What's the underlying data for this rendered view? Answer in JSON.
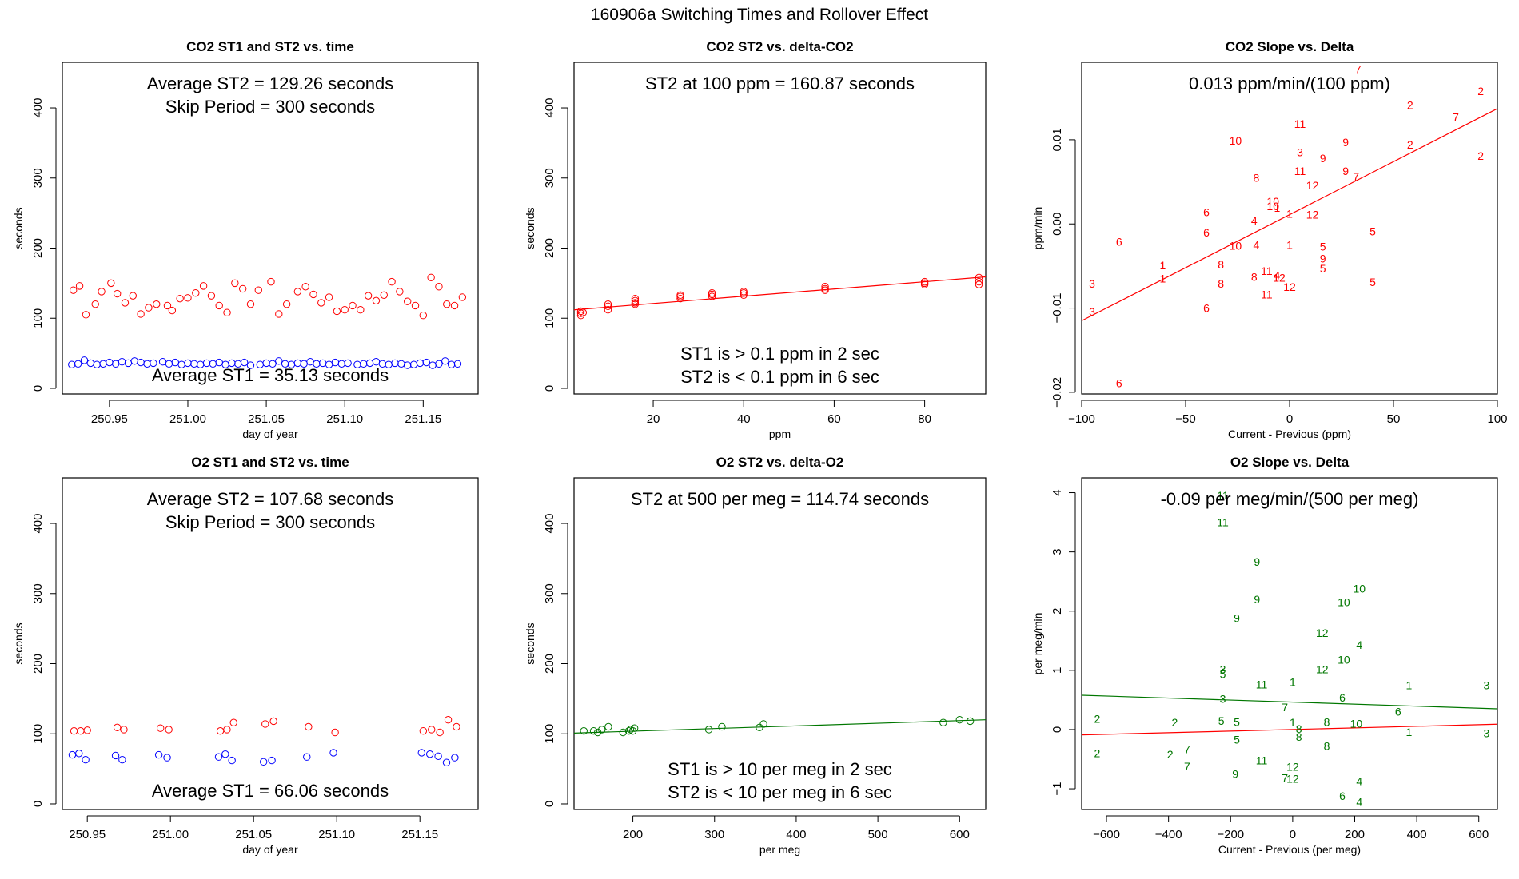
{
  "figure_title": "160906a   Switching Times and Rollover Effect",
  "colors": {
    "co2": "#ff0000",
    "st1": "#0000ff",
    "o2": "#007700",
    "frame": "#000000"
  },
  "chart_data": [
    {
      "type": "scatter",
      "title": "CO2 ST1 and ST2 vs. time",
      "xlabel": "day of year",
      "ylabel": "seconds",
      "xlim": [
        250.92,
        251.185
      ],
      "ylim": [
        -8,
        465
      ],
      "xticks": [
        250.95,
        251.0,
        251.05,
        251.1,
        251.15
      ],
      "xtick_labels": [
        "250.95",
        "251.00",
        "251.05",
        "251.10",
        "251.15"
      ],
      "yticks": [
        0,
        100,
        200,
        300,
        400
      ],
      "ytick_labels": [
        "0",
        "100",
        "200",
        "300",
        "400"
      ],
      "annotations": [
        "Average ST2 =  129.26  seconds",
        "Skip Period =  300  seconds",
        "Average ST1 =  35.13  seconds"
      ],
      "series": [
        {
          "name": "ST2",
          "color": "#ff0000",
          "x": [
            250.927,
            250.931,
            250.935,
            250.941,
            250.945,
            250.951,
            250.955,
            250.96,
            250.965,
            250.97,
            250.975,
            250.98,
            250.987,
            250.99,
            250.995,
            251.0,
            251.005,
            251.01,
            251.015,
            251.02,
            251.025,
            251.03,
            251.035,
            251.04,
            251.045,
            251.053,
            251.058,
            251.063,
            251.07,
            251.075,
            251.08,
            251.085,
            251.09,
            251.095,
            251.1,
            251.105,
            251.11,
            251.115,
            251.12,
            251.125,
            251.13,
            251.135,
            251.14,
            251.145,
            251.15,
            251.155,
            251.16,
            251.165,
            251.17,
            251.175
          ],
          "y": [
            140,
            146,
            105,
            120,
            138,
            150,
            135,
            122,
            132,
            106,
            115,
            120,
            118,
            111,
            128,
            129,
            136,
            146,
            132,
            118,
            108,
            150,
            142,
            120,
            140,
            152,
            106,
            120,
            138,
            145,
            134,
            122,
            130,
            110,
            112,
            118,
            112,
            132,
            125,
            133,
            152,
            138,
            124,
            118,
            104,
            158,
            145,
            120,
            118,
            130
          ]
        },
        {
          "name": "ST1",
          "color": "#0000ff",
          "x": [
            250.926,
            250.93,
            250.934,
            250.938,
            250.942,
            250.946,
            250.95,
            250.954,
            250.958,
            250.962,
            250.966,
            250.97,
            250.974,
            250.978,
            250.984,
            250.988,
            250.992,
            250.996,
            251.0,
            251.004,
            251.008,
            251.012,
            251.016,
            251.02,
            251.024,
            251.028,
            251.032,
            251.036,
            251.04,
            251.046,
            251.05,
            251.054,
            251.058,
            251.062,
            251.066,
            251.07,
            251.074,
            251.078,
            251.082,
            251.086,
            251.09,
            251.094,
            251.098,
            251.102,
            251.108,
            251.112,
            251.116,
            251.12,
            251.124,
            251.128,
            251.132,
            251.136,
            251.14,
            251.144,
            251.148,
            251.152,
            251.156,
            251.16,
            251.164,
            251.168,
            251.172
          ],
          "y": [
            34,
            35,
            40,
            36,
            34,
            35,
            37,
            35,
            38,
            36,
            39,
            37,
            35,
            36,
            38,
            35,
            37,
            34,
            36,
            35,
            34,
            36,
            35,
            37,
            34,
            36,
            35,
            37,
            33,
            34,
            36,
            35,
            39,
            35,
            34,
            36,
            35,
            38,
            35,
            36,
            34,
            37,
            35,
            36,
            34,
            35,
            36,
            38,
            35,
            34,
            36,
            35,
            33,
            34,
            36,
            37,
            33,
            35,
            39,
            34,
            35
          ]
        }
      ]
    },
    {
      "type": "scatter",
      "title": "CO2 ST2 vs. delta-CO2",
      "xlabel": "ppm",
      "ylabel": "seconds",
      "xlim": [
        2.5,
        93.5
      ],
      "ylim": [
        -8,
        465
      ],
      "xticks": [
        20,
        40,
        60,
        80
      ],
      "xtick_labels": [
        "20",
        "40",
        "60",
        "80"
      ],
      "yticks": [
        0,
        100,
        200,
        300,
        400
      ],
      "ytick_labels": [
        "0",
        "100",
        "200",
        "300",
        "400"
      ],
      "annotations": [
        "ST2 at 100 ppm =  160.87  seconds",
        "ST1 is > 0.1 ppm in 2 sec",
        "ST2 is < 0.1 ppm in 6 sec"
      ],
      "fit_line": {
        "color": "#ff0000",
        "x": [
          2.5,
          93.5
        ],
        "y": [
          112,
          159
        ]
      },
      "series": [
        {
          "name": "ST2",
          "color": "#ff0000",
          "x": [
            4,
            4,
            4,
            4.5,
            10,
            10,
            10,
            16,
            16,
            16,
            16,
            26,
            26,
            26,
            33,
            33,
            33,
            40,
            40,
            40,
            58,
            58,
            58,
            80,
            80,
            80,
            92,
            92,
            92
          ],
          "y": [
            104,
            107,
            110,
            108,
            112,
            117,
            120,
            120,
            122,
            125,
            128,
            128,
            131,
            133,
            131,
            134,
            136,
            133,
            136,
            138,
            140,
            142,
            145,
            148,
            150,
            152,
            148,
            152,
            158
          ]
        }
      ]
    },
    {
      "type": "scatter",
      "title": "CO2 Slope vs. Delta",
      "xlabel": "Current - Previous (ppm)",
      "ylabel": "ppm/min",
      "xlim": [
        -100,
        100
      ],
      "ylim": [
        -0.0202,
        0.0192
      ],
      "xticks": [
        -100,
        -50,
        0,
        50,
        100
      ],
      "xtick_labels": [
        "−100",
        "−50",
        "0",
        "50",
        "100"
      ],
      "yticks": [
        -0.02,
        -0.01,
        0.0,
        0.01
      ],
      "ytick_labels": [
        "−0.02",
        "−0.01",
        "0.00",
        "0.01"
      ],
      "annotations": [
        "0.013  ppm/min/(100 ppm)"
      ],
      "fit_line": {
        "color": "#ff0000",
        "x": [
          -100,
          100
        ],
        "y": [
          -0.0115,
          0.0137
        ]
      },
      "series": [
        {
          "name": "hour labels",
          "color": "#ff0000",
          "x": [
            33,
            58,
            80,
            92,
            92,
            -26,
            5,
            5,
            5,
            16,
            27,
            32,
            58,
            27,
            -16,
            11,
            -8,
            -8,
            -40,
            -17,
            -6,
            0,
            11,
            -16,
            -26,
            -40,
            -82,
            -61,
            -61,
            -95,
            -95,
            -33,
            -33,
            -17,
            -11,
            -6,
            0,
            16,
            16,
            16,
            40,
            40,
            -11,
            -5,
            0,
            -40,
            -82
          ],
          "y": [
            0.0184,
            0.0141,
            0.0127,
            0.0158,
            0.0081,
            0.0099,
            0.0119,
            0.0085,
            0.0063,
            0.0078,
            0.0097,
            0.0056,
            0.0094,
            0.0063,
            0.0055,
            0.0046,
            0.0027,
            0.0021,
            0.0014,
            0.0004,
            0.0019,
            0.0012,
            0.0011,
            -0.0025,
            -0.0026,
            -0.001,
            -0.0021,
            -0.0049,
            -0.0065,
            -0.0071,
            -0.0104,
            -0.0048,
            -0.0071,
            -0.0063,
            -0.0056,
            -0.0061,
            -0.0025,
            -0.0027,
            -0.0041,
            -0.0053,
            -0.0009,
            -0.0069,
            -0.0084,
            -0.0064,
            -0.0075,
            -0.01,
            -0.0189
          ],
          "labels": [
            "7",
            "2",
            "7",
            "2",
            "2",
            "10",
            "11",
            "3",
            "11",
            "9",
            "9",
            "7",
            "2",
            "9",
            "8",
            "12",
            "10",
            "10",
            "6",
            "4",
            "1",
            "1",
            "12",
            "4",
            "10",
            "6",
            "6",
            "1",
            "1",
            "3",
            "3",
            "8",
            "8",
            "8",
            "11",
            "4",
            "1",
            "5",
            "9",
            "5",
            "5",
            "5",
            "11",
            "12",
            "12",
            "6",
            "6"
          ]
        }
      ]
    },
    {
      "type": "scatter",
      "title": "O2 ST1 and ST2 vs. time",
      "xlabel": "day of year",
      "ylabel": "seconds",
      "xlim": [
        250.935,
        251.185
      ],
      "ylim": [
        -8,
        465
      ],
      "xticks": [
        250.95,
        251.0,
        251.05,
        251.1,
        251.15
      ],
      "xtick_labels": [
        "250.95",
        "251.00",
        "251.05",
        "251.10",
        "251.15"
      ],
      "yticks": [
        0,
        100,
        200,
        300,
        400
      ],
      "ytick_labels": [
        "0",
        "100",
        "200",
        "300",
        "400"
      ],
      "annotations": [
        "Average ST2 =  107.68  seconds",
        "Skip Period =  300  seconds",
        "Average ST1 =  66.06  seconds"
      ],
      "series": [
        {
          "name": "ST2",
          "color": "#ff0000",
          "x": [
            250.942,
            250.946,
            250.95,
            250.968,
            250.972,
            250.994,
            250.999,
            251.03,
            251.034,
            251.038,
            251.057,
            251.062,
            251.083,
            251.099,
            251.152,
            251.157,
            251.162,
            251.167,
            251.172
          ],
          "y": [
            104,
            104,
            105,
            109,
            106,
            108,
            106,
            104,
            106,
            116,
            114,
            118,
            110,
            102,
            104,
            106,
            102,
            120,
            110
          ]
        },
        {
          "name": "ST1",
          "color": "#0000ff",
          "x": [
            250.941,
            250.945,
            250.949,
            250.967,
            250.971,
            250.993,
            250.998,
            251.029,
            251.033,
            251.037,
            251.056,
            251.061,
            251.082,
            251.098,
            251.151,
            251.156,
            251.161,
            251.166,
            251.171
          ],
          "y": [
            70,
            72,
            63,
            69,
            63,
            70,
            66,
            67,
            71,
            62,
            60,
            62,
            67,
            73,
            73,
            71,
            68,
            59,
            66
          ]
        }
      ]
    },
    {
      "type": "scatter",
      "title": "O2 ST2 vs. delta-O2",
      "xlabel": "per meg",
      "ylabel": "seconds",
      "xlim": [
        128,
        632
      ],
      "ylim": [
        -8,
        465
      ],
      "xticks": [
        200,
        300,
        400,
        500,
        600
      ],
      "xtick_labels": [
        "200",
        "300",
        "400",
        "500",
        "600"
      ],
      "yticks": [
        0,
        100,
        200,
        300,
        400
      ],
      "ytick_labels": [
        "0",
        "100",
        "200",
        "300",
        "400"
      ],
      "annotations": [
        "ST2 at 500 per meg =  114.74  seconds",
        "ST1 is > 10 per meg in 2 sec",
        "ST2 is < 10 per meg in 6 sec"
      ],
      "fit_line": {
        "color": "#007700",
        "x": [
          128,
          632
        ],
        "y": [
          101,
          120
        ]
      },
      "series": [
        {
          "name": "ST2",
          "color": "#007700",
          "x": [
            140,
            152,
            157,
            162,
            170,
            188,
            195,
            197,
            200,
            202,
            293,
            309,
            355,
            360,
            580,
            600,
            613
          ],
          "y": [
            104,
            104,
            102,
            106,
            110,
            102,
            104,
            106,
            104,
            108,
            106,
            110,
            109,
            114,
            116,
            120,
            118
          ]
        }
      ]
    },
    {
      "type": "scatter",
      "title": "O2 Slope vs. Delta",
      "xlabel": "Current - Previous (per meg)",
      "ylabel": "per meg/min",
      "xlim": [
        -680,
        660
      ],
      "ylim": [
        -1.35,
        4.25
      ],
      "xticks": [
        -600,
        -400,
        -200,
        0,
        200,
        400,
        600
      ],
      "xtick_labels": [
        "−600",
        "−400",
        "−200",
        "0",
        "200",
        "400",
        "600"
      ],
      "yticks": [
        -1,
        0,
        1,
        2,
        3,
        4
      ],
      "ytick_labels": [
        "−1",
        "0",
        "1",
        "2",
        "3",
        "4"
      ],
      "annotations": [
        "-0.09  per meg/min/(500 per meg)"
      ],
      "fit_lines": [
        {
          "color": "#007700",
          "x": [
            -680,
            660
          ],
          "y": [
            0.58,
            0.35
          ]
        },
        {
          "color": "#ff0000",
          "x": [
            -680,
            660
          ],
          "y": [
            -0.09,
            0.09
          ]
        }
      ],
      "series": [
        {
          "name": "hour labels",
          "color": "#007700",
          "x": [
            -225,
            -225,
            -115,
            -115,
            -180,
            215,
            165,
            95,
            215,
            165,
            95,
            -225,
            -225,
            -100,
            0,
            -25,
            375,
            625,
            -225,
            160,
            -630,
            -380,
            -230,
            -180,
            0,
            110,
            340,
            205,
            375,
            625,
            20,
            20,
            -180,
            110,
            -630,
            -395,
            -340,
            -340,
            -100,
            0,
            -185,
            -25,
            0,
            215,
            160,
            215
          ],
          "y": [
            3.95,
            3.5,
            2.83,
            2.2,
            1.88,
            2.38,
            2.15,
            1.63,
            1.43,
            1.18,
            1.02,
            1.02,
            0.94,
            0.76,
            0.8,
            0.38,
            0.75,
            0.75,
            0.52,
            0.54,
            0.18,
            0.12,
            0.15,
            0.13,
            0.12,
            0.13,
            0.3,
            0.1,
            -0.04,
            -0.06,
            0.01,
            -0.12,
            -0.17,
            -0.28,
            -0.4,
            -0.42,
            -0.33,
            -0.62,
            -0.52,
            -0.63,
            -0.75,
            -0.82,
            -0.83,
            -0.87,
            -1.12,
            -1.22
          ],
          "labels": [
            "11",
            "11",
            "9",
            "9",
            "9",
            "10",
            "10",
            "12",
            "4",
            "10",
            "12",
            "3",
            "5",
            "11",
            "1",
            "7",
            "1",
            "3",
            "3",
            "6",
            "2",
            "2",
            "5",
            "5",
            "1",
            "8",
            "6",
            "10",
            "1",
            "3",
            "8",
            "8",
            "5",
            "8",
            "2",
            "2",
            "7",
            "7",
            "11",
            "12",
            "9",
            "7",
            "12",
            "4",
            "6",
            "4"
          ]
        }
      ]
    }
  ]
}
